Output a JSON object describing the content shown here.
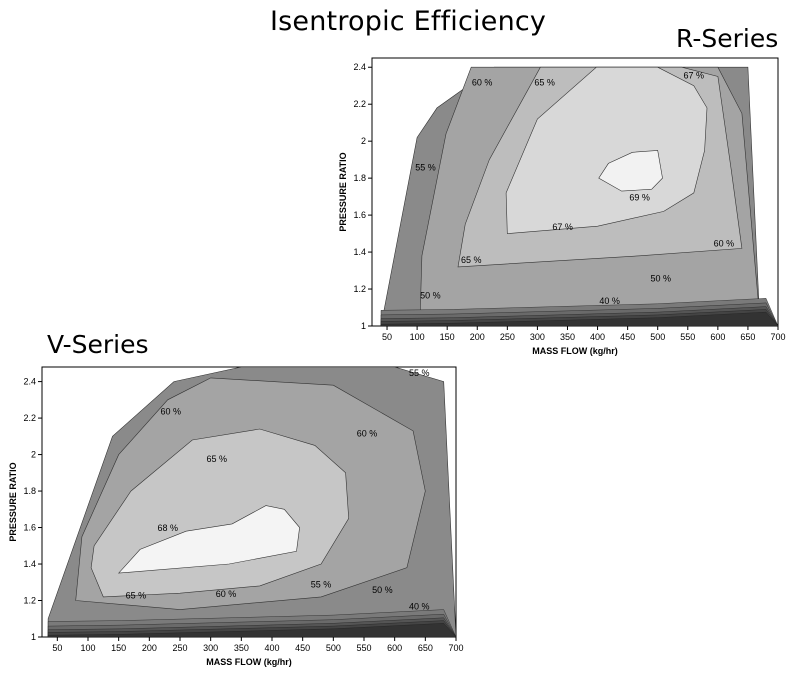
{
  "page": {
    "main_title": "Isentropic Efficiency"
  },
  "chart_data": [
    {
      "type": "contour",
      "title": "R-Series",
      "xlabel": "MASS FLOW (kg/hr)",
      "ylabel": "PRESSURE RATIO",
      "xlim": [
        25,
        700
      ],
      "ylim": [
        1,
        2.45
      ],
      "xticks": [
        50,
        100,
        150,
        200,
        250,
        300,
        350,
        400,
        450,
        500,
        550,
        600,
        650,
        700
      ],
      "yticks": [
        1,
        1.2,
        1.4,
        1.6,
        1.8,
        2,
        2.2,
        2.4
      ],
      "grid": false,
      "colors": {
        "dark": "#5a5a5a",
        "mid": "#8a8a8a",
        "r60": "#a4a4a4",
        "r65": "#bdbdbd",
        "r67": "#d8d8d8",
        "r69": "#f2f2f2",
        "line": "#333333"
      },
      "regions": [
        {
          "level": "map",
          "fill": "#8a8a8a",
          "points": [
            [
              40,
              1
            ],
            [
              670,
              1
            ],
            [
              650,
              2.4
            ],
            [
              228,
              2.4
            ],
            [
              133,
              2.18
            ],
            [
              100,
              2.02
            ]
          ]
        },
        {
          "level": "60 %",
          "fill": "#a4a4a4",
          "points": [
            [
              105,
              1.05
            ],
            [
              670,
              1.03
            ],
            [
              660,
              1.4
            ],
            [
              640,
              2.15
            ],
            [
              600,
              2.4
            ],
            [
              190,
              2.4
            ],
            [
              148,
              2.04
            ],
            [
              108,
              1.38
            ]
          ]
        },
        {
          "level": "65 %",
          "fill": "#bdbdbd",
          "points": [
            [
              168,
              1.32
            ],
            [
              470,
              1.38
            ],
            [
              640,
              1.42
            ],
            [
              622,
              1.85
            ],
            [
              600,
              2.35
            ],
            [
              540,
              2.4
            ],
            [
              305,
              2.4
            ],
            [
              220,
              1.9
            ],
            [
              180,
              1.55
            ]
          ]
        },
        {
          "level": "67 %",
          "fill": "#d8d8d8",
          "points": [
            [
              250,
              1.5
            ],
            [
              400,
              1.54
            ],
            [
              510,
              1.62
            ],
            [
              560,
              1.72
            ],
            [
              578,
              1.95
            ],
            [
              582,
              2.18
            ],
            [
              560,
              2.3
            ],
            [
              500,
              2.4
            ],
            [
              398,
              2.4
            ],
            [
              300,
              2.12
            ],
            [
              248,
              1.72
            ]
          ]
        },
        {
          "level": "69 %",
          "fill": "#f2f2f2",
          "points": [
            [
              402,
              1.8
            ],
            [
              418,
              1.88
            ],
            [
              458,
              1.94
            ],
            [
              500,
              1.95
            ],
            [
              508,
              1.8
            ],
            [
              490,
              1.74
            ],
            [
              440,
              1.73
            ]
          ]
        }
      ],
      "contour_labels": [
        {
          "text": "60 %",
          "x": 208,
          "y": 2.3
        },
        {
          "text": "65 %",
          "x": 312,
          "y": 2.3
        },
        {
          "text": "67 %",
          "x": 560,
          "y": 2.34
        },
        {
          "text": "55 %",
          "x": 114,
          "y": 1.84
        },
        {
          "text": "69 %",
          "x": 470,
          "y": 1.68
        },
        {
          "text": "67 %",
          "x": 342,
          "y": 1.52
        },
        {
          "text": "65 %",
          "x": 190,
          "y": 1.34
        },
        {
          "text": "60 %",
          "x": 610,
          "y": 1.43
        },
        {
          "text": "50 %",
          "x": 122,
          "y": 1.15
        },
        {
          "text": "50 %",
          "x": 505,
          "y": 1.24
        },
        {
          "text": "40 %",
          "x": 420,
          "y": 1.12
        }
      ]
    },
    {
      "type": "contour",
      "title": "V-Series",
      "xlabel": "MASS FLOW (kg/hr)",
      "ylabel": "PRESSURE RATIO",
      "xlim": [
        25,
        700
      ],
      "ylim": [
        1,
        2.48
      ],
      "xticks": [
        50,
        100,
        150,
        200,
        250,
        300,
        350,
        400,
        450,
        500,
        550,
        600,
        650,
        700
      ],
      "yticks": [
        1,
        1.2,
        1.4,
        1.6,
        1.8,
        2,
        2.2,
        2.4
      ],
      "grid": false,
      "colors": {
        "dark": "#5a5a5a",
        "mid": "#8a8a8a",
        "v60": "#a4a4a4",
        "v65": "#c6c6c6",
        "v68": "#f4f4f4",
        "line": "#333333"
      },
      "regions": [
        {
          "level": "map",
          "fill": "#8a8a8a",
          "points": [
            [
              35,
              1
            ],
            [
              700,
              1
            ],
            [
              680,
              2.4
            ],
            [
              600,
              2.48
            ],
            [
              350,
              2.48
            ],
            [
              240,
              2.4
            ],
            [
              140,
              2.1
            ],
            [
              35,
              1.1
            ]
          ]
        },
        {
          "level": "60 %",
          "fill": "#a4a4a4",
          "points": [
            [
              80,
              1.2
            ],
            [
              250,
              1.15
            ],
            [
              480,
              1.22
            ],
            [
              620,
              1.38
            ],
            [
              650,
              1.8
            ],
            [
              630,
              2.13
            ],
            [
              500,
              2.38
            ],
            [
              300,
              2.42
            ],
            [
              230,
              2.3
            ],
            [
              150,
              2.0
            ],
            [
              90,
              1.55
            ]
          ]
        },
        {
          "level": "65 %",
          "fill": "#c6c6c6",
          "points": [
            [
              125,
              1.22
            ],
            [
              250,
              1.24
            ],
            [
              380,
              1.28
            ],
            [
              480,
              1.4
            ],
            [
              525,
              1.65
            ],
            [
              520,
              1.9
            ],
            [
              470,
              2.05
            ],
            [
              380,
              2.14
            ],
            [
              270,
              2.08
            ],
            [
              170,
              1.8
            ],
            [
              110,
              1.5
            ],
            [
              105,
              1.38
            ]
          ]
        },
        {
          "level": "68 %",
          "fill": "#f4f4f4",
          "points": [
            [
              150,
              1.35
            ],
            [
              330,
              1.4
            ],
            [
              440,
              1.47
            ],
            [
              445,
              1.6
            ],
            [
              420,
              1.7
            ],
            [
              390,
              1.72
            ],
            [
              335,
              1.62
            ],
            [
              260,
              1.58
            ],
            [
              185,
              1.48
            ]
          ]
        }
      ],
      "contour_labels": [
        {
          "text": "60 %",
          "x": 235,
          "y": 2.22
        },
        {
          "text": "55 %",
          "x": 640,
          "y": 2.43
        },
        {
          "text": "60 %",
          "x": 555,
          "y": 2.1
        },
        {
          "text": "65 %",
          "x": 310,
          "y": 1.96
        },
        {
          "text": "68 %",
          "x": 230,
          "y": 1.58
        },
        {
          "text": "65 %",
          "x": 178,
          "y": 1.21
        },
        {
          "text": "60 %",
          "x": 325,
          "y": 1.22
        },
        {
          "text": "55 %",
          "x": 480,
          "y": 1.27
        },
        {
          "text": "50 %",
          "x": 580,
          "y": 1.24
        },
        {
          "text": "40 %",
          "x": 640,
          "y": 1.15
        }
      ]
    }
  ]
}
